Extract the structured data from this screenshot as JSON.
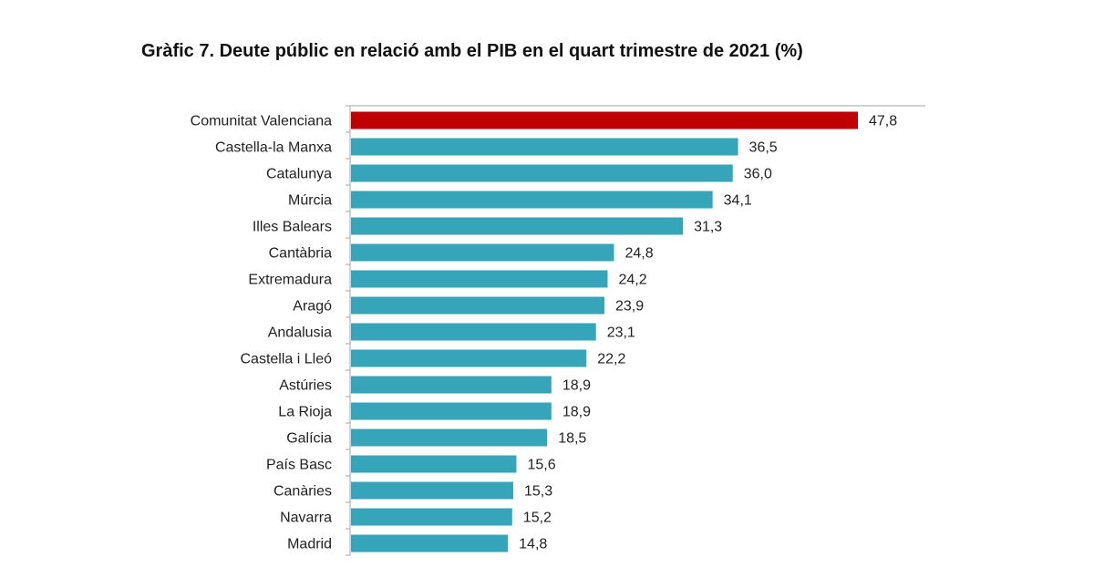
{
  "chart_data": {
    "type": "bar",
    "orientation": "horizontal",
    "title": "Gràfic 7. Deute públic en relació amb el PIB en el quart trimestre de 2021 (%)",
    "xlabel": "",
    "ylabel": "",
    "xlim": [
      0,
      50
    ],
    "grid": false,
    "categories": [
      "Comunitat Valenciana",
      "Castella-la Manxa",
      "Catalunya",
      "Múrcia",
      "Illes Balears",
      "Cantàbria",
      "Extremadura",
      "Aragó",
      "Andalusia",
      "Castella i Lleó",
      "Astúries",
      "La Rioja",
      "Galícia",
      "País Basc",
      "Canàries",
      "Navarra",
      "Madrid"
    ],
    "values": [
      47.8,
      36.5,
      36.0,
      34.1,
      31.3,
      24.8,
      24.2,
      23.9,
      23.1,
      22.2,
      18.9,
      18.9,
      18.5,
      15.6,
      15.3,
      15.2,
      14.8
    ],
    "data_labels": [
      "47,8",
      "36,5",
      "36,0",
      "34,1",
      "31,3",
      "24,8",
      "24,2",
      "23,9",
      "23,1",
      "22,2",
      "18,9",
      "18,9",
      "18,5",
      "15,6",
      "15,3",
      "15,2",
      "14,8"
    ],
    "colors": {
      "highlight": "#C00000",
      "default": "#36A5BA",
      "axis": "#A6A6A6"
    },
    "highlight_category": "Comunitat Valenciana"
  }
}
